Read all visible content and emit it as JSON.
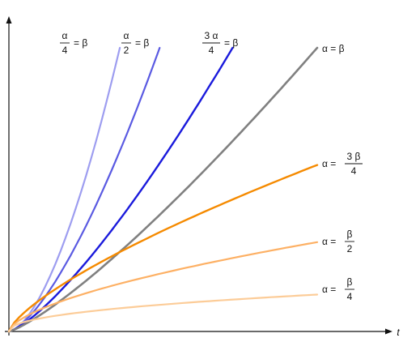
{
  "chart_data": {
    "type": "line",
    "xlabel": "t",
    "ylabel": "",
    "grid": false,
    "series": [
      {
        "id": "a4",
        "color": "#9d9df0",
        "stroke_width": 2.2,
        "x": [
          0,
          1
        ],
        "y": [
          0,
          5.4
        ],
        "label": {
          "kind": "frac-left",
          "num": "α",
          "den": "4",
          "rhs": "= β"
        }
      },
      {
        "id": "a2",
        "color": "#5a5ae2",
        "stroke_width": 2.2,
        "x": [
          0,
          1
        ],
        "y": [
          0,
          2.87
        ],
        "label": {
          "kind": "frac-left",
          "num": "α",
          "den": "2",
          "rhs": "= β"
        }
      },
      {
        "id": "a34",
        "color": "#1a1adc",
        "stroke_width": 2.4,
        "x": [
          0,
          1
        ],
        "y": [
          0,
          1.53
        ],
        "label": {
          "kind": "frac-left",
          "num": "3 α",
          "den": "4",
          "rhs": "= β"
        }
      },
      {
        "id": "eq",
        "color": "#808080",
        "stroke_width": 2.6,
        "x": [
          0,
          1
        ],
        "y": [
          0,
          1.0
        ],
        "label": {
          "kind": "plain",
          "text": "α = β"
        }
      },
      {
        "id": "b34",
        "color": "#f58a00",
        "stroke_width": 2.4,
        "x": [
          0,
          1
        ],
        "y": [
          0,
          0.587
        ],
        "label": {
          "kind": "frac-right",
          "lhs": "α =",
          "num": "3 β",
          "den": "4"
        }
      },
      {
        "id": "b2",
        "color": "#fdb064",
        "stroke_width": 2.2,
        "x": [
          0,
          1
        ],
        "y": [
          0,
          0.315
        ],
        "label": {
          "kind": "frac-right",
          "lhs": "α =",
          "num": "β",
          "den": "2"
        }
      },
      {
        "id": "b4",
        "color": "#fccc98",
        "stroke_width": 2.2,
        "x": [
          0,
          1
        ],
        "y": [
          0,
          0.13
        ],
        "label": {
          "kind": "frac-right",
          "lhs": "α =",
          "num": "β",
          "den": "4"
        }
      }
    ]
  }
}
